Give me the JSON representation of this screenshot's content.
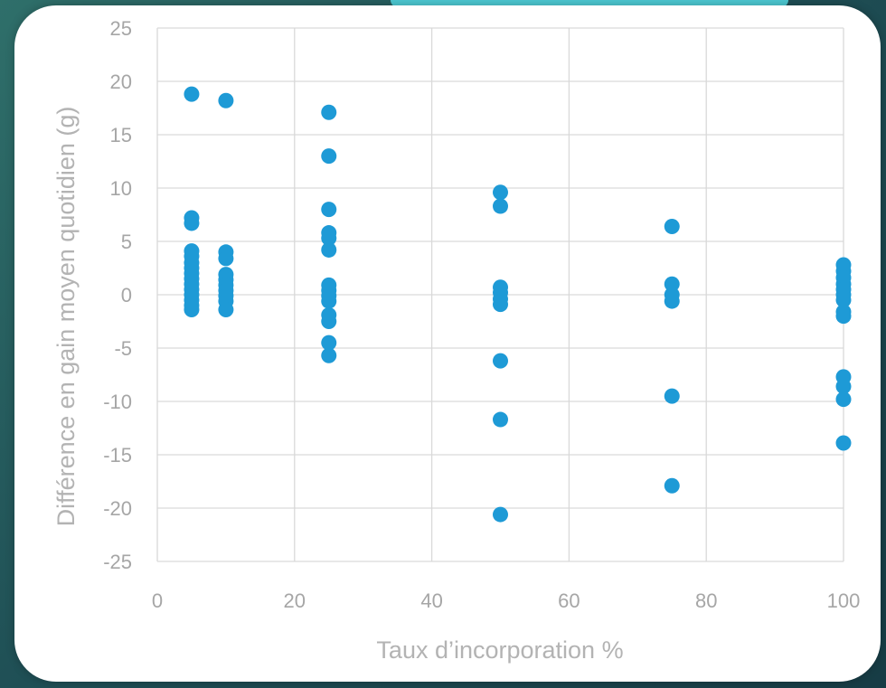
{
  "chart_data": {
    "type": "scatter",
    "title": "",
    "xlabel": "Taux d’incorporation %",
    "ylabel": "Différence en gain moyen quotidien (g)",
    "xlim": [
      0,
      100
    ],
    "ylim": [
      -25,
      25
    ],
    "x_ticks": [
      "0",
      "20",
      "40",
      "60",
      "80",
      "100"
    ],
    "y_ticks": [
      "25",
      "20",
      "15",
      "10",
      "5",
      "0",
      "-5",
      "-10",
      "-15",
      "-20",
      "-25"
    ],
    "x_tick_values": [
      0,
      20,
      40,
      60,
      80,
      100
    ],
    "y_tick_values": [
      25,
      20,
      15,
      10,
      5,
      0,
      -5,
      -10,
      -15,
      -20,
      -25
    ],
    "grid": true,
    "legend": "none",
    "point_color": "#1e9ad6",
    "points": [
      {
        "x": 5,
        "y": 18.8
      },
      {
        "x": 5,
        "y": 7.2
      },
      {
        "x": 5,
        "y": 6.7
      },
      {
        "x": 5,
        "y": 4.1
      },
      {
        "x": 5,
        "y": 3.6
      },
      {
        "x": 5,
        "y": 3.0
      },
      {
        "x": 5,
        "y": 2.5
      },
      {
        "x": 5,
        "y": 2.0
      },
      {
        "x": 5,
        "y": 1.5
      },
      {
        "x": 5,
        "y": 1.0
      },
      {
        "x": 5,
        "y": 0.5
      },
      {
        "x": 5,
        "y": 0.0
      },
      {
        "x": 5,
        "y": -0.5
      },
      {
        "x": 5,
        "y": -1.0
      },
      {
        "x": 5,
        "y": -1.4
      },
      {
        "x": 10,
        "y": 18.2
      },
      {
        "x": 10,
        "y": 4.0
      },
      {
        "x": 10,
        "y": 3.4
      },
      {
        "x": 10,
        "y": 1.9
      },
      {
        "x": 10,
        "y": 1.4
      },
      {
        "x": 10,
        "y": 0.9
      },
      {
        "x": 10,
        "y": 0.4
      },
      {
        "x": 10,
        "y": -0.1
      },
      {
        "x": 10,
        "y": -0.6
      },
      {
        "x": 10,
        "y": -1.4
      },
      {
        "x": 25,
        "y": 17.1
      },
      {
        "x": 25,
        "y": 13.0
      },
      {
        "x": 25,
        "y": 8.0
      },
      {
        "x": 25,
        "y": 5.8
      },
      {
        "x": 25,
        "y": 5.3
      },
      {
        "x": 25,
        "y": 4.2
      },
      {
        "x": 25,
        "y": 0.9
      },
      {
        "x": 25,
        "y": 0.4
      },
      {
        "x": 25,
        "y": -0.1
      },
      {
        "x": 25,
        "y": -0.6
      },
      {
        "x": 25,
        "y": -1.9
      },
      {
        "x": 25,
        "y": -2.5
      },
      {
        "x": 25,
        "y": -4.5
      },
      {
        "x": 25,
        "y": -5.7
      },
      {
        "x": 50,
        "y": 9.6
      },
      {
        "x": 50,
        "y": 8.3
      },
      {
        "x": 50,
        "y": 0.7
      },
      {
        "x": 50,
        "y": 0.2
      },
      {
        "x": 50,
        "y": -0.4
      },
      {
        "x": 50,
        "y": -0.9
      },
      {
        "x": 50,
        "y": -6.2
      },
      {
        "x": 50,
        "y": -11.7
      },
      {
        "x": 50,
        "y": -20.6
      },
      {
        "x": 75,
        "y": 6.4
      },
      {
        "x": 75,
        "y": 1.0
      },
      {
        "x": 75,
        "y": 0.0
      },
      {
        "x": 75,
        "y": -0.6
      },
      {
        "x": 75,
        "y": -9.5
      },
      {
        "x": 75,
        "y": -17.9
      },
      {
        "x": 100,
        "y": 2.8
      },
      {
        "x": 100,
        "y": 2.2
      },
      {
        "x": 100,
        "y": 1.6
      },
      {
        "x": 100,
        "y": 1.0
      },
      {
        "x": 100,
        "y": 0.5
      },
      {
        "x": 100,
        "y": 0.0
      },
      {
        "x": 100,
        "y": -0.5
      },
      {
        "x": 100,
        "y": -1.6
      },
      {
        "x": 100,
        "y": -2.0
      },
      {
        "x": 100,
        "y": -7.7
      },
      {
        "x": 100,
        "y": -8.6
      },
      {
        "x": 100,
        "y": -9.8
      },
      {
        "x": 100,
        "y": -13.9
      }
    ]
  }
}
